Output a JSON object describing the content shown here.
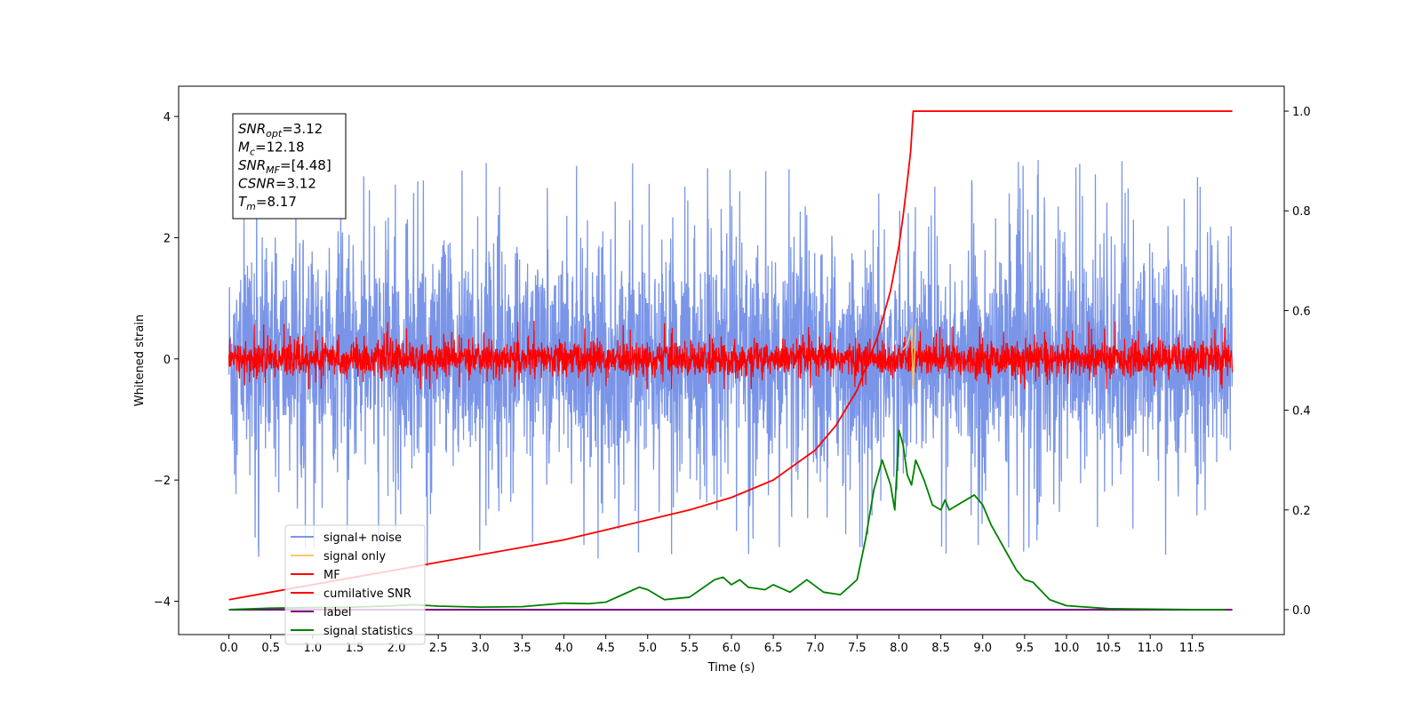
{
  "chart_data": {
    "type": "line",
    "xlabel": "Time (s)",
    "ylabel": "Whitened strain",
    "xlim": [
      -0.6,
      12.6
    ],
    "ylim": [
      -4.55,
      4.5
    ],
    "y2lim": [
      -0.05,
      1.05
    ],
    "xticks": [
      0.0,
      0.5,
      1.0,
      1.5,
      2.0,
      2.5,
      3.0,
      3.5,
      4.0,
      4.5,
      5.0,
      5.5,
      6.0,
      6.5,
      7.0,
      7.5,
      8.0,
      8.5,
      9.0,
      9.5,
      10.0,
      10.5,
      11.0,
      11.5
    ],
    "xtick_labels": [
      "0.0",
      "0.5",
      "1.0",
      "1.5",
      "2.0",
      "2.5",
      "3.0",
      "3.5",
      "4.0",
      "4.5",
      "5.0",
      "5.5",
      "6.0",
      "6.5",
      "7.0",
      "7.5",
      "8.0",
      "8.5",
      "9.0",
      "9.5",
      "10.0",
      "10.5",
      "11.0",
      "11.5"
    ],
    "yticks": [
      -4,
      -2,
      0,
      2,
      4
    ],
    "ytick_labels": [
      "−4",
      "−2",
      "0",
      "2",
      "4"
    ],
    "y2ticks": [
      0.0,
      0.2,
      0.4,
      0.6,
      0.8,
      1.0
    ],
    "y2tick_labels": [
      "0.0",
      "0.2",
      "0.4",
      "0.6",
      "0.8",
      "1.0"
    ],
    "grid": false,
    "legend_position": "bottom-left",
    "colors": {
      "signal_noise": "#7a95e8",
      "signal_only": "#f5c96a",
      "mf": "#ff0000",
      "cumulative_snr": "#ff0000",
      "label": "#800080",
      "signal_statistics": "#008000"
    },
    "series": [
      {
        "name": "signal+ noise",
        "axis": "left",
        "style": "noise band",
        "center": 0.0,
        "band_low": -1.2,
        "band_high": 1.5,
        "extreme_low": -4.0,
        "extreme_high": 4.05,
        "x_range": [
          0.0,
          11.98
        ]
      },
      {
        "name": "signal only",
        "axis": "left",
        "x": [
          8.05,
          8.1,
          8.15,
          8.17,
          8.2
        ],
        "values": [
          0.15,
          0.25,
          0.5,
          -0.5,
          0.6
        ]
      },
      {
        "name": "MF",
        "axis": "left",
        "style": "noise band",
        "center": 0.0,
        "band_low": -0.35,
        "band_high": 0.45,
        "extreme_high": 1.0,
        "extreme_low": -0.5,
        "x_range": [
          0.0,
          11.98
        ]
      },
      {
        "name": "cumilative SNR",
        "axis": "right",
        "x": [
          0.0,
          0.5,
          1.0,
          1.5,
          2.0,
          2.5,
          3.0,
          3.5,
          4.0,
          4.5,
          5.0,
          5.5,
          6.0,
          6.5,
          7.0,
          7.25,
          7.5,
          7.75,
          7.9,
          8.0,
          8.05,
          8.1,
          8.14,
          8.17,
          8.5,
          9.0,
          10.0,
          11.0,
          11.98
        ],
        "values": [
          0.02,
          0.035,
          0.05,
          0.065,
          0.08,
          0.095,
          0.11,
          0.125,
          0.14,
          0.16,
          0.18,
          0.2,
          0.225,
          0.26,
          0.32,
          0.37,
          0.44,
          0.55,
          0.64,
          0.73,
          0.79,
          0.86,
          0.92,
          1.0,
          1.0,
          1.0,
          1.0,
          1.0,
          1.0
        ]
      },
      {
        "name": "label",
        "axis": "right",
        "x": [
          0.0,
          11.98
        ],
        "values": [
          0.0,
          0.0
        ]
      },
      {
        "name": "signal statistics",
        "axis": "right",
        "x": [
          0.0,
          0.5,
          1.0,
          1.5,
          2.0,
          2.2,
          2.5,
          3.0,
          3.5,
          4.0,
          4.3,
          4.5,
          4.7,
          4.9,
          5.0,
          5.2,
          5.5,
          5.8,
          5.9,
          6.0,
          6.1,
          6.2,
          6.4,
          6.5,
          6.7,
          6.9,
          7.1,
          7.3,
          7.5,
          7.6,
          7.7,
          7.8,
          7.9,
          7.95,
          8.0,
          8.05,
          8.1,
          8.15,
          8.2,
          8.25,
          8.3,
          8.4,
          8.5,
          8.55,
          8.6,
          8.7,
          8.8,
          8.9,
          9.0,
          9.1,
          9.2,
          9.3,
          9.4,
          9.5,
          9.6,
          9.8,
          10.0,
          10.5,
          11.0,
          11.5,
          11.9
        ],
        "values": [
          0.0,
          0.003,
          0.004,
          0.005,
          0.008,
          0.01,
          0.007,
          0.005,
          0.006,
          0.013,
          0.012,
          0.015,
          0.03,
          0.045,
          0.04,
          0.02,
          0.025,
          0.06,
          0.065,
          0.05,
          0.06,
          0.045,
          0.04,
          0.05,
          0.035,
          0.06,
          0.035,
          0.03,
          0.06,
          0.14,
          0.24,
          0.3,
          0.25,
          0.2,
          0.36,
          0.33,
          0.27,
          0.25,
          0.3,
          0.28,
          0.26,
          0.21,
          0.2,
          0.22,
          0.2,
          0.21,
          0.22,
          0.23,
          0.21,
          0.17,
          0.14,
          0.11,
          0.08,
          0.06,
          0.055,
          0.02,
          0.008,
          0.002,
          0.001,
          0.0,
          0.0
        ]
      }
    ],
    "annotations": [
      {
        "base": "SNR",
        "sub": "opt",
        "value": "=3.12"
      },
      {
        "base": "M",
        "sub": "c",
        "value": "=12.18"
      },
      {
        "base": "SNR",
        "sub": "MF",
        "value": "=[4.48]"
      },
      {
        "base": "CSNR",
        "sub": "",
        "value": "=3.12"
      },
      {
        "base": "T",
        "sub": "m",
        "value": "=8.17"
      }
    ]
  }
}
